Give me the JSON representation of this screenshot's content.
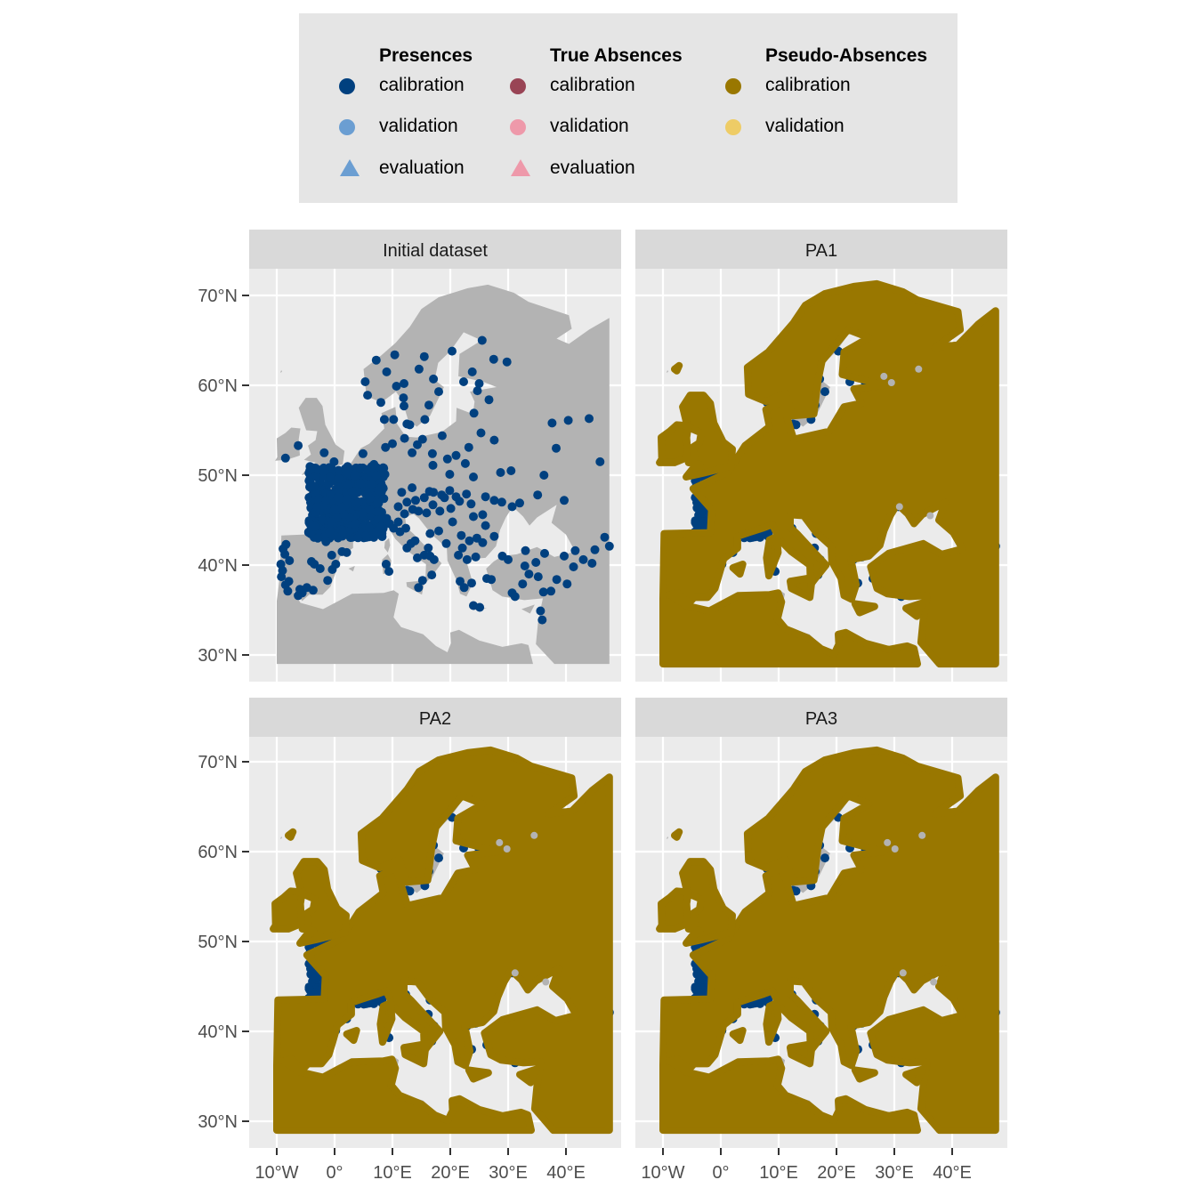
{
  "legend": {
    "groups": [
      {
        "title": "Presences",
        "items": [
          {
            "label": "calibration",
            "shape": "circle",
            "color": "#00407f"
          },
          {
            "label": "validation",
            "shape": "circle",
            "color": "#6b9ed2"
          },
          {
            "label": "evaluation",
            "shape": "triangle",
            "color": "#6b9ed2"
          }
        ]
      },
      {
        "title": "True Absences",
        "items": [
          {
            "label": "calibration",
            "shape": "circle",
            "color": "#994455"
          },
          {
            "label": "validation",
            "shape": "circle",
            "color": "#ee99aa"
          },
          {
            "label": "evaluation",
            "shape": "triangle",
            "color": "#ee99aa"
          }
        ]
      },
      {
        "title": "Pseudo-Absences",
        "items": [
          {
            "label": "calibration",
            "shape": "circle",
            "color": "#997700"
          },
          {
            "label": "validation",
            "shape": "circle",
            "color": "#eecc66"
          }
        ]
      }
    ]
  },
  "chart_data": {
    "type": "scatter",
    "layout": "2x2 facet grid of maps",
    "x_axis": {
      "range": [
        -15,
        50
      ],
      "ticks": [
        -10,
        0,
        10,
        20,
        30,
        40
      ],
      "tick_labels": [
        "10°W",
        "0°",
        "10°E",
        "20°E",
        "30°E",
        "40°E"
      ]
    },
    "y_axis": {
      "range": [
        27,
        74
      ],
      "ticks": [
        30,
        40,
        50,
        60,
        70
      ],
      "tick_labels": [
        "30°N",
        "40°N",
        "50°N",
        "60°N",
        "70°N"
      ]
    },
    "grid": true,
    "legend_position": "top",
    "colors": {
      "panel_bg": "#ebebeb",
      "strip_bg": "#d9d9d9",
      "land": "#b3b3b3",
      "presence_calibration": "#00407f",
      "pseudo_absence_calibration": "#997700"
    },
    "panels": [
      {
        "title": "Initial dataset",
        "layers": [
          "land",
          "presences"
        ],
        "presences": {
          "dense_region": {
            "lon": [
              -4.5,
              8.5
            ],
            "lat": [
              43,
              51
            ]
          },
          "points": [
            [
              -9.2,
              38.7
            ],
            [
              -8.6,
              41.2
            ],
            [
              -8.4,
              42.3
            ],
            [
              -7.8,
              40.5
            ],
            [
              -9.0,
              39.4
            ],
            [
              -8.1,
              37.1
            ],
            [
              -6.3,
              36.6
            ],
            [
              -8.9,
              41.8
            ],
            [
              -7.9,
              38.2
            ],
            [
              -9.3,
              40.1
            ],
            [
              -8.5,
              37.8
            ],
            [
              -4.0,
              40.4
            ],
            [
              -3.5,
              40.1
            ],
            [
              -2.5,
              39.6
            ],
            [
              -1.2,
              38.3
            ],
            [
              -0.4,
              39.5
            ],
            [
              0.2,
              40.1
            ],
            [
              1.3,
              41.5
            ],
            [
              2.1,
              41.4
            ],
            [
              -4.8,
              37.5
            ],
            [
              -5.6,
              36.9
            ],
            [
              -2.9,
              43.0
            ],
            [
              -1.5,
              42.6
            ],
            [
              -0.5,
              41.1
            ],
            [
              -6.0,
              37.3
            ],
            [
              -3.7,
              37.2
            ],
            [
              9.5,
              44.6
            ],
            [
              10.2,
              44.1
            ],
            [
              11.0,
              44.8
            ],
            [
              11.3,
              43.7
            ],
            [
              12.5,
              41.9
            ],
            [
              13.2,
              42.4
            ],
            [
              14.3,
              40.8
            ],
            [
              15.5,
              41.1
            ],
            [
              16.5,
              41.0
            ],
            [
              17.2,
              40.6
            ],
            [
              13.9,
              42.7
            ],
            [
              12.3,
              44.1
            ],
            [
              9.0,
              45.2
            ],
            [
              8.0,
              44.3
            ],
            [
              12.1,
              45.7
            ],
            [
              15.2,
              38.3
            ],
            [
              14.5,
              37.5
            ],
            [
              16.8,
              38.9
            ],
            [
              8.9,
              40.1
            ],
            [
              9.4,
              39.3
            ],
            [
              13.5,
              46.2
            ],
            [
              16.2,
              41.9
            ],
            [
              11.0,
              46.5
            ],
            [
              12.5,
              47.0
            ],
            [
              14.0,
              47.2
            ],
            [
              15.5,
              47.5
            ],
            [
              16.4,
              48.2
            ],
            [
              17.1,
              48.1
            ],
            [
              18.5,
              47.8
            ],
            [
              19.0,
              47.5
            ],
            [
              19.9,
              48.3
            ],
            [
              21.0,
              47.6
            ],
            [
              21.6,
              47.1
            ],
            [
              22.8,
              47.9
            ],
            [
              20.1,
              46.3
            ],
            [
              18.2,
              46.0
            ],
            [
              17.0,
              46.7
            ],
            [
              15.9,
              45.8
            ],
            [
              14.5,
              46.0
            ],
            [
              16.5,
              43.5
            ],
            [
              18.0,
              43.8
            ],
            [
              19.3,
              42.4
            ],
            [
              20.4,
              44.8
            ],
            [
              21.9,
              43.3
            ],
            [
              23.3,
              42.7
            ],
            [
              24.6,
              43.0
            ],
            [
              25.6,
              42.5
            ],
            [
              26.1,
              44.4
            ],
            [
              27.6,
              43.2
            ],
            [
              24.0,
              45.4
            ],
            [
              25.6,
              45.6
            ],
            [
              23.6,
              46.8
            ],
            [
              26.1,
              47.6
            ],
            [
              27.6,
              47.2
            ],
            [
              28.9,
              47.0
            ],
            [
              22.1,
              41.9
            ],
            [
              21.4,
              41.1
            ],
            [
              22.9,
              40.6
            ],
            [
              24.4,
              40.9
            ],
            [
              23.7,
              38.0
            ],
            [
              22.4,
              37.5
            ],
            [
              21.7,
              38.2
            ],
            [
              25.1,
              35.3
            ],
            [
              24.0,
              35.5
            ],
            [
              26.3,
              38.5
            ],
            [
              27.1,
              38.4
            ],
            [
              29.0,
              41.0
            ],
            [
              30.7,
              36.9
            ],
            [
              32.9,
              39.9
            ],
            [
              33.6,
              39.0
            ],
            [
              35.2,
              38.7
            ],
            [
              36.1,
              37.0
            ],
            [
              37.4,
              37.1
            ],
            [
              33.0,
              41.6
            ],
            [
              34.8,
              40.3
            ],
            [
              36.3,
              41.3
            ],
            [
              39.7,
              41.0
            ],
            [
              38.4,
              38.4
            ],
            [
              40.2,
              37.9
            ],
            [
              41.3,
              39.8
            ],
            [
              43.0,
              40.6
            ],
            [
              44.5,
              40.2
            ],
            [
              45.0,
              41.7
            ],
            [
              46.7,
              43.1
            ],
            [
              41.6,
              41.6
            ],
            [
              35.6,
              34.9
            ],
            [
              35.9,
              33.9
            ],
            [
              31.2,
              36.5
            ],
            [
              30.0,
              40.6
            ],
            [
              32.5,
              37.9
            ],
            [
              19.9,
              50.1
            ],
            [
              21.0,
              52.2
            ],
            [
              18.6,
              54.4
            ],
            [
              17.0,
              51.1
            ],
            [
              16.9,
              52.4
            ],
            [
              22.6,
              51.3
            ],
            [
              23.2,
              53.1
            ],
            [
              19.5,
              51.8
            ],
            [
              25.3,
              54.7
            ],
            [
              24.1,
              56.9
            ],
            [
              27.6,
              53.9
            ],
            [
              30.5,
              50.5
            ],
            [
              24.0,
              49.8
            ],
            [
              28.7,
              50.3
            ],
            [
              32.0,
              46.9
            ],
            [
              30.7,
              46.5
            ],
            [
              35.1,
              47.8
            ],
            [
              36.2,
              50.0
            ],
            [
              37.6,
              55.8
            ],
            [
              38.3,
              53.0
            ],
            [
              40.4,
              56.1
            ],
            [
              44.0,
              56.3
            ],
            [
              45.9,
              51.5
            ],
            [
              47.5,
              42.1
            ],
            [
              39.7,
              47.2
            ],
            [
              26.7,
              58.4
            ],
            [
              24.7,
              59.4
            ],
            [
              22.3,
              60.4
            ],
            [
              25.0,
              60.2
            ],
            [
              23.8,
              61.5
            ],
            [
              27.5,
              62.9
            ],
            [
              29.8,
              62.6
            ],
            [
              25.5,
              65.0
            ],
            [
              18.0,
              59.3
            ],
            [
              16.3,
              57.8
            ],
            [
              15.6,
              56.2
            ],
            [
              13.0,
              55.6
            ],
            [
              12.0,
              57.7
            ],
            [
              11.9,
              58.6
            ],
            [
              14.6,
              61.8
            ],
            [
              17.1,
              60.7
            ],
            [
              15.5,
              63.2
            ],
            [
              20.3,
              63.8
            ],
            [
              10.7,
              59.9
            ],
            [
              10.4,
              63.4
            ],
            [
              8.0,
              58.1
            ],
            [
              5.3,
              60.4
            ],
            [
              5.7,
              58.9
            ],
            [
              12.0,
              60.2
            ],
            [
              9.0,
              61.5
            ],
            [
              7.2,
              62.8
            ],
            [
              8.6,
              56.2
            ],
            [
              10.2,
              56.2
            ],
            [
              12.5,
              55.7
            ],
            [
              10.0,
              53.5
            ],
            [
              8.8,
              53.1
            ],
            [
              13.4,
              52.5
            ],
            [
              14.3,
              53.4
            ],
            [
              12.1,
              54.1
            ],
            [
              15.2,
              54.0
            ],
            [
              -6.3,
              53.3
            ],
            [
              -8.5,
              51.9
            ],
            [
              -1.8,
              52.5
            ],
            [
              -0.1,
              51.5
            ],
            [
              2.4,
              48.9
            ],
            [
              -1.5,
              47.2
            ],
            [
              4.8,
              45.8
            ],
            [
              5.4,
              43.3
            ],
            [
              -0.6,
              44.8
            ],
            [
              1.4,
              43.6
            ],
            [
              7.3,
              43.7
            ],
            [
              7.4,
              46.9
            ],
            [
              8.5,
              47.4
            ],
            [
              6.1,
              46.2
            ],
            [
              4.4,
              50.8
            ],
            [
              4.9,
              52.4
            ],
            [
              6.8,
              51.2
            ],
            [
              8.7,
              50.1
            ],
            [
              11.6,
              48.1
            ],
            [
              13.4,
              48.6
            ]
          ]
        }
      },
      {
        "title": "PA1",
        "layers": [
          "land",
          "presences",
          "pseudo-absences"
        ]
      },
      {
        "title": "PA2",
        "layers": [
          "land",
          "presences",
          "pseudo-absences"
        ]
      },
      {
        "title": "PA3",
        "layers": [
          "land",
          "presences",
          "pseudo-absences"
        ]
      }
    ]
  }
}
